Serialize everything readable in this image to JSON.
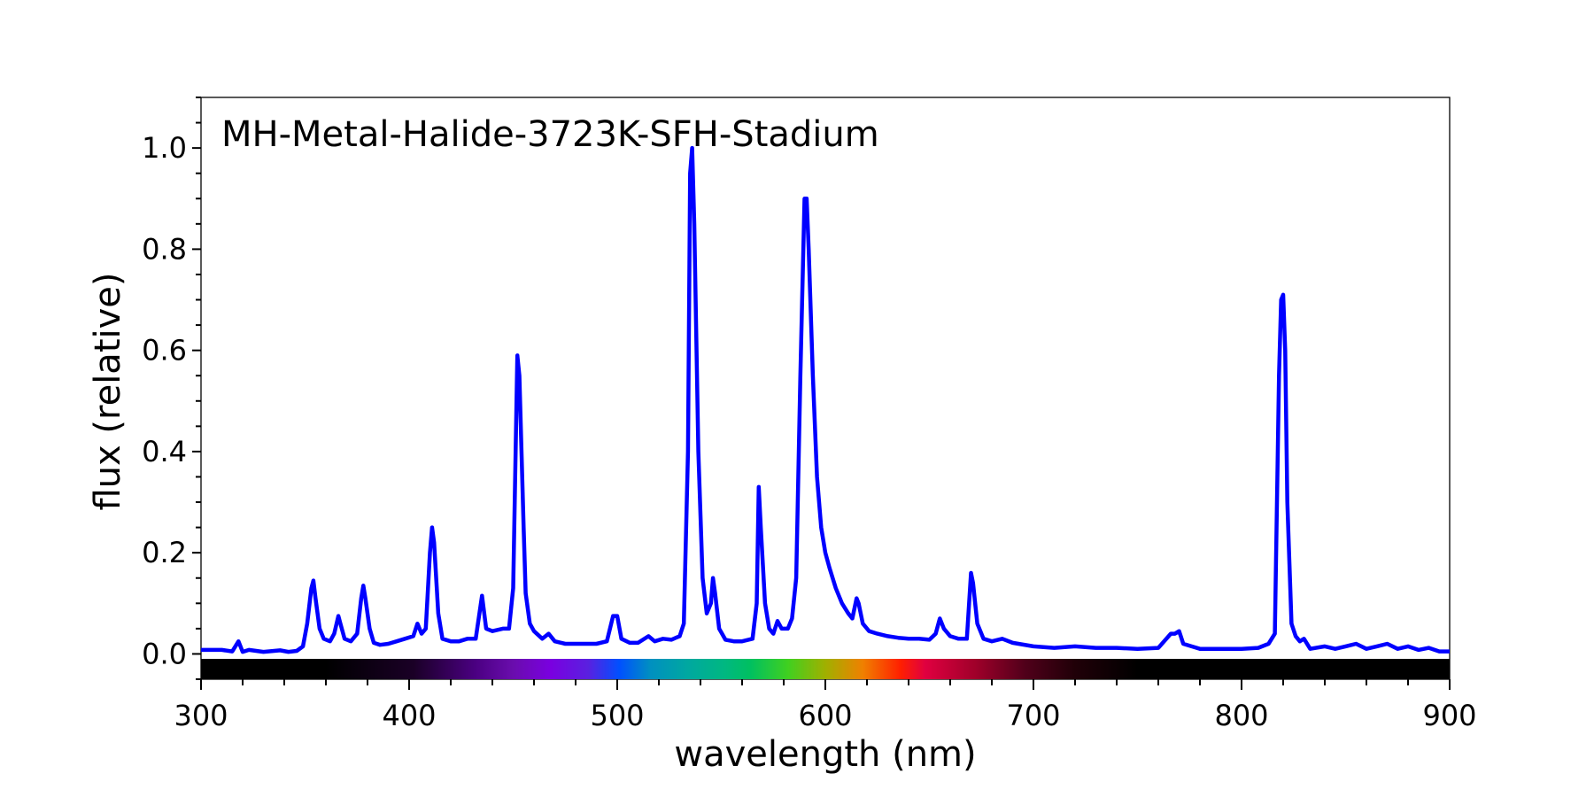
{
  "chart_data": {
    "type": "line",
    "title": "MH-Metal-Halide-3723K-SFH-Stadium",
    "xlabel": "wavelength (nm)",
    "ylabel": "flux (relative)",
    "xlim": [
      300,
      900
    ],
    "ylim": [
      -0.05,
      1.1
    ],
    "x_ticks": [
      "300",
      "400",
      "500",
      "600",
      "700",
      "800",
      "900"
    ],
    "y_ticks": [
      "0.0",
      "0.2",
      "0.4",
      "0.6",
      "0.8",
      "1.0"
    ],
    "grid": false,
    "line_color": "#0000ff",
    "spectrum_bar": true,
    "series": [
      {
        "points": [
          [
            300,
            0.008
          ],
          [
            310,
            0.008
          ],
          [
            315,
            0.005
          ],
          [
            318,
            0.025
          ],
          [
            320,
            0.004
          ],
          [
            323,
            0.008
          ],
          [
            330,
            0.004
          ],
          [
            338,
            0.007
          ],
          [
            342,
            0.004
          ],
          [
            346,
            0.006
          ],
          [
            349,
            0.015
          ],
          [
            351,
            0.06
          ],
          [
            353,
            0.13
          ],
          [
            354,
            0.145
          ],
          [
            355,
            0.11
          ],
          [
            357,
            0.05
          ],
          [
            359,
            0.03
          ],
          [
            362,
            0.025
          ],
          [
            364,
            0.04
          ],
          [
            366,
            0.075
          ],
          [
            367,
            0.06
          ],
          [
            369,
            0.03
          ],
          [
            372,
            0.025
          ],
          [
            375,
            0.04
          ],
          [
            377,
            0.11
          ],
          [
            378,
            0.135
          ],
          [
            379,
            0.11
          ],
          [
            381,
            0.05
          ],
          [
            383,
            0.022
          ],
          [
            386,
            0.018
          ],
          [
            390,
            0.02
          ],
          [
            394,
            0.025
          ],
          [
            398,
            0.03
          ],
          [
            402,
            0.035
          ],
          [
            404,
            0.06
          ],
          [
            406,
            0.04
          ],
          [
            408,
            0.05
          ],
          [
            410,
            0.2
          ],
          [
            411,
            0.25
          ],
          [
            412,
            0.22
          ],
          [
            414,
            0.08
          ],
          [
            416,
            0.03
          ],
          [
            420,
            0.025
          ],
          [
            424,
            0.025
          ],
          [
            428,
            0.03
          ],
          [
            432,
            0.03
          ],
          [
            435,
            0.115
          ],
          [
            437,
            0.05
          ],
          [
            440,
            0.045
          ],
          [
            445,
            0.05
          ],
          [
            448,
            0.05
          ],
          [
            450,
            0.13
          ],
          [
            452,
            0.59
          ],
          [
            453,
            0.55
          ],
          [
            455,
            0.25
          ],
          [
            456,
            0.12
          ],
          [
            458,
            0.06
          ],
          [
            460,
            0.045
          ],
          [
            464,
            0.03
          ],
          [
            467,
            0.04
          ],
          [
            470,
            0.025
          ],
          [
            475,
            0.02
          ],
          [
            480,
            0.02
          ],
          [
            485,
            0.02
          ],
          [
            490,
            0.02
          ],
          [
            495,
            0.025
          ],
          [
            498,
            0.075
          ],
          [
            500,
            0.075
          ],
          [
            502,
            0.03
          ],
          [
            506,
            0.022
          ],
          [
            510,
            0.022
          ],
          [
            515,
            0.035
          ],
          [
            518,
            0.025
          ],
          [
            522,
            0.03
          ],
          [
            526,
            0.028
          ],
          [
            530,
            0.035
          ],
          [
            532,
            0.06
          ],
          [
            534,
            0.4
          ],
          [
            535,
            0.95
          ],
          [
            536,
            1.0
          ],
          [
            537,
            0.85
          ],
          [
            539,
            0.4
          ],
          [
            541,
            0.15
          ],
          [
            543,
            0.08
          ],
          [
            545,
            0.1
          ],
          [
            546,
            0.15
          ],
          [
            547,
            0.12
          ],
          [
            549,
            0.05
          ],
          [
            552,
            0.028
          ],
          [
            556,
            0.025
          ],
          [
            560,
            0.025
          ],
          [
            565,
            0.03
          ],
          [
            567,
            0.1
          ],
          [
            568,
            0.33
          ],
          [
            569,
            0.25
          ],
          [
            571,
            0.1
          ],
          [
            573,
            0.05
          ],
          [
            575,
            0.04
          ],
          [
            577,
            0.065
          ],
          [
            579,
            0.05
          ],
          [
            582,
            0.05
          ],
          [
            584,
            0.07
          ],
          [
            586,
            0.15
          ],
          [
            588,
            0.55
          ],
          [
            590,
            0.9
          ],
          [
            591,
            0.9
          ],
          [
            592,
            0.8
          ],
          [
            594,
            0.55
          ],
          [
            596,
            0.35
          ],
          [
            598,
            0.25
          ],
          [
            600,
            0.2
          ],
          [
            602,
            0.17
          ],
          [
            605,
            0.13
          ],
          [
            608,
            0.1
          ],
          [
            611,
            0.08
          ],
          [
            613,
            0.07
          ],
          [
            615,
            0.11
          ],
          [
            616,
            0.1
          ],
          [
            618,
            0.06
          ],
          [
            621,
            0.045
          ],
          [
            625,
            0.04
          ],
          [
            630,
            0.035
          ],
          [
            635,
            0.032
          ],
          [
            640,
            0.03
          ],
          [
            645,
            0.03
          ],
          [
            650,
            0.028
          ],
          [
            653,
            0.04
          ],
          [
            655,
            0.07
          ],
          [
            657,
            0.05
          ],
          [
            660,
            0.035
          ],
          [
            664,
            0.03
          ],
          [
            668,
            0.03
          ],
          [
            670,
            0.16
          ],
          [
            671,
            0.14
          ],
          [
            673,
            0.06
          ],
          [
            676,
            0.03
          ],
          [
            680,
            0.025
          ],
          [
            685,
            0.03
          ],
          [
            690,
            0.022
          ],
          [
            700,
            0.015
          ],
          [
            710,
            0.012
          ],
          [
            720,
            0.015
          ],
          [
            730,
            0.012
          ],
          [
            740,
            0.012
          ],
          [
            750,
            0.01
          ],
          [
            760,
            0.012
          ],
          [
            766,
            0.04
          ],
          [
            768,
            0.04
          ],
          [
            770,
            0.045
          ],
          [
            772,
            0.02
          ],
          [
            776,
            0.015
          ],
          [
            780,
            0.01
          ],
          [
            790,
            0.01
          ],
          [
            800,
            0.01
          ],
          [
            808,
            0.012
          ],
          [
            813,
            0.02
          ],
          [
            816,
            0.04
          ],
          [
            818,
            0.55
          ],
          [
            819,
            0.7
          ],
          [
            820,
            0.71
          ],
          [
            821,
            0.6
          ],
          [
            822,
            0.3
          ],
          [
            824,
            0.06
          ],
          [
            826,
            0.035
          ],
          [
            828,
            0.025
          ],
          [
            830,
            0.03
          ],
          [
            833,
            0.01
          ],
          [
            840,
            0.015
          ],
          [
            845,
            0.01
          ],
          [
            850,
            0.015
          ],
          [
            855,
            0.02
          ],
          [
            860,
            0.01
          ],
          [
            865,
            0.015
          ],
          [
            870,
            0.02
          ],
          [
            875,
            0.01
          ],
          [
            880,
            0.015
          ],
          [
            885,
            0.008
          ],
          [
            890,
            0.012
          ],
          [
            895,
            0.005
          ],
          [
            900,
            0.005
          ]
        ]
      }
    ]
  }
}
